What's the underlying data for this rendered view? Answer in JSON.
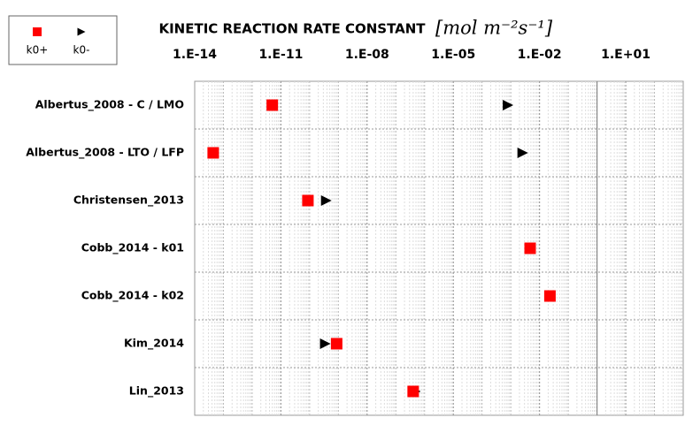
{
  "chart_data": {
    "type": "dot",
    "title": "KINETIC REACTION RATE CONSTANT",
    "unit": "[mol m⁻²s⁻¹]",
    "categories": [
      "Albertus_2008 - C / LMO",
      "Albertus_2008 - LTO / LFP",
      "Christensen_2013",
      "Cobb_2014 - k01",
      "Cobb_2014 - k02",
      "Kim_2014",
      "Lin_2013"
    ],
    "series": [
      {
        "name": "k0+",
        "color": "#ff0000",
        "marker": "square",
        "values": [
          5e-12,
          4.4e-14,
          8.7e-11,
          0.0047,
          0.023,
          8.7e-10,
          4e-07
        ]
      },
      {
        "name": "k0-",
        "color": "#000000",
        "marker": "triangle",
        "values": [
          0.0008,
          0.0026,
          3.8e-10,
          null,
          null,
          3.5e-10,
          4.8e-07
        ]
      }
    ],
    "xscale": "log",
    "xlim": [
      1e-14,
      1000.0
    ],
    "xticks": [
      {
        "value": 1e-14,
        "label": "1.E-14"
      },
      {
        "value": 1e-11,
        "label": "1.E-11"
      },
      {
        "value": 1e-08,
        "label": "1.E-08"
      },
      {
        "value": 1e-05,
        "label": "1.E-05"
      },
      {
        "value": 0.01,
        "label": "1.E-02"
      },
      {
        "value": 10.0,
        "label": "1.E+01"
      }
    ],
    "grid": true,
    "legend": "top-left"
  }
}
